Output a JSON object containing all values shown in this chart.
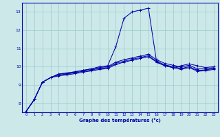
{
  "bg_color": "#cce8e8",
  "grid_color": "#99cccc",
  "line_color": "#0000aa",
  "xlabel": "Graphe des températures (°c)",
  "xlim": [
    -0.5,
    23.5
  ],
  "ylim": [
    7.5,
    13.5
  ],
  "yticks": [
    8,
    9,
    10,
    11,
    12,
    13
  ],
  "xticks": [
    0,
    1,
    2,
    3,
    4,
    5,
    6,
    7,
    8,
    9,
    10,
    11,
    12,
    13,
    14,
    15,
    16,
    17,
    18,
    19,
    20,
    21,
    22,
    23
  ],
  "series": [
    [
      7.55,
      8.2,
      9.15,
      9.4,
      9.6,
      9.65,
      9.72,
      9.8,
      9.88,
      10.0,
      10.05,
      11.1,
      12.65,
      13.0,
      13.1,
      13.2,
      10.25,
      10.05,
      9.95,
      10.05,
      10.15,
      10.05,
      9.95,
      10.0
    ],
    [
      7.55,
      8.2,
      9.15,
      9.4,
      9.6,
      9.65,
      9.72,
      9.8,
      9.88,
      9.95,
      10.0,
      10.25,
      10.38,
      10.48,
      10.58,
      10.68,
      10.38,
      10.18,
      10.08,
      9.98,
      10.08,
      9.88,
      9.88,
      9.95
    ],
    [
      7.55,
      8.2,
      9.15,
      9.4,
      9.55,
      9.6,
      9.67,
      9.75,
      9.82,
      9.9,
      9.95,
      10.18,
      10.3,
      10.4,
      10.5,
      10.6,
      10.3,
      10.1,
      10.0,
      9.9,
      10.0,
      9.8,
      9.82,
      9.9
    ],
    [
      7.55,
      8.2,
      9.15,
      9.4,
      9.5,
      9.55,
      9.62,
      9.7,
      9.77,
      9.85,
      9.9,
      10.12,
      10.25,
      10.35,
      10.45,
      10.55,
      10.25,
      10.05,
      9.95,
      9.85,
      9.95,
      9.75,
      9.78,
      9.85
    ]
  ]
}
